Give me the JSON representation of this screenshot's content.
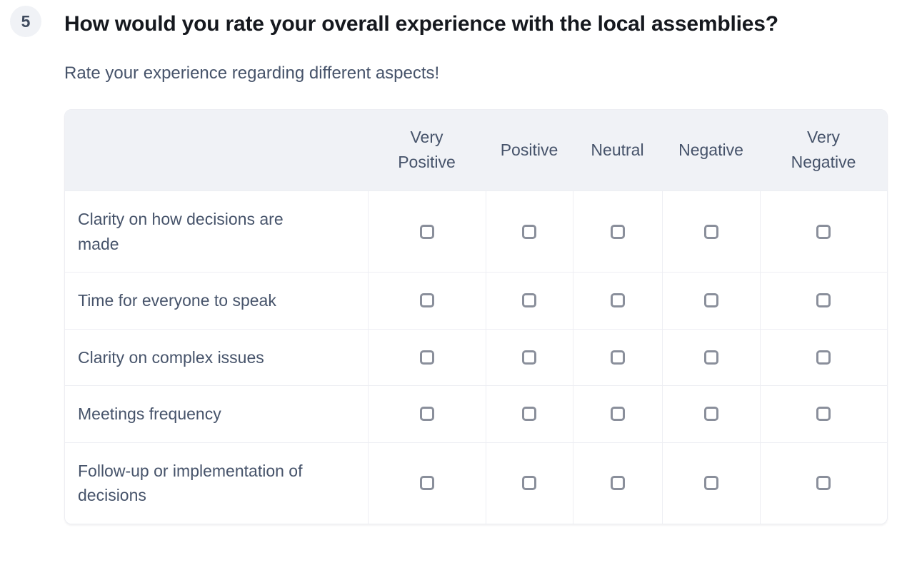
{
  "question": {
    "number": "5",
    "title": "How would you rate your overall experience with the local assemblies?",
    "subtitle": "Rate your experience regarding different aspects!"
  },
  "matrix": {
    "columns": [
      "Very Positive",
      "Positive",
      "Neutral",
      "Negative",
      "Very Negative"
    ],
    "rows": [
      {
        "label": "Clarity on how decisions are made"
      },
      {
        "label": "Time for everyone to speak"
      },
      {
        "label": "Clarity on complex issues"
      },
      {
        "label": "Meetings frequency"
      },
      {
        "label": "Follow-up or implementation of decisions"
      }
    ],
    "checkbox_state": "unchecked"
  },
  "colors": {
    "header_bg": "#f0f2f6",
    "badge_bg": "#f0f2f6",
    "title_text": "#15181e",
    "body_text": "#46536a",
    "grid_border": "#edeef3",
    "checkbox_border": "#8a8f9b"
  }
}
